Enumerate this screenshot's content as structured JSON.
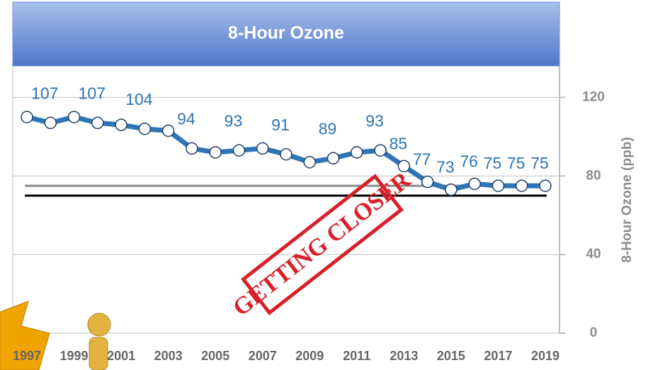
{
  "chart_data": {
    "type": "line",
    "title": "8-Hour Ozone",
    "y_label": "8-Hour Ozone (ppb)",
    "categories": [
      "1997",
      null,
      "1999",
      null,
      "2001",
      null,
      "2003",
      null,
      "2005",
      null,
      "2007",
      null,
      "2009",
      null,
      "2011",
      null,
      "2013",
      null,
      "2015",
      null,
      "2017",
      null,
      "2019"
    ],
    "values": [
      110,
      107,
      110,
      107,
      106,
      104,
      103,
      94,
      92,
      93,
      94,
      91,
      87,
      89,
      92,
      93,
      85,
      77,
      73,
      76,
      75,
      75,
      75
    ],
    "value_labels": [
      null,
      "107",
      null,
      "107",
      null,
      "104",
      null,
      "94",
      null,
      "93",
      null,
      "91",
      null,
      "89",
      null,
      "93",
      "85",
      "77",
      "73",
      "76",
      "75",
      "75",
      "75"
    ],
    "color": "#2e75b6",
    "ylim": [
      0,
      136
    ],
    "yticks": [
      0,
      40,
      80,
      120
    ],
    "grid": true,
    "reference_lines": [
      {
        "value": 75,
        "color": "#8c8c8c"
      },
      {
        "value": 70,
        "color": "#000000"
      }
    ],
    "stamp": "GETTING CLOSER"
  }
}
